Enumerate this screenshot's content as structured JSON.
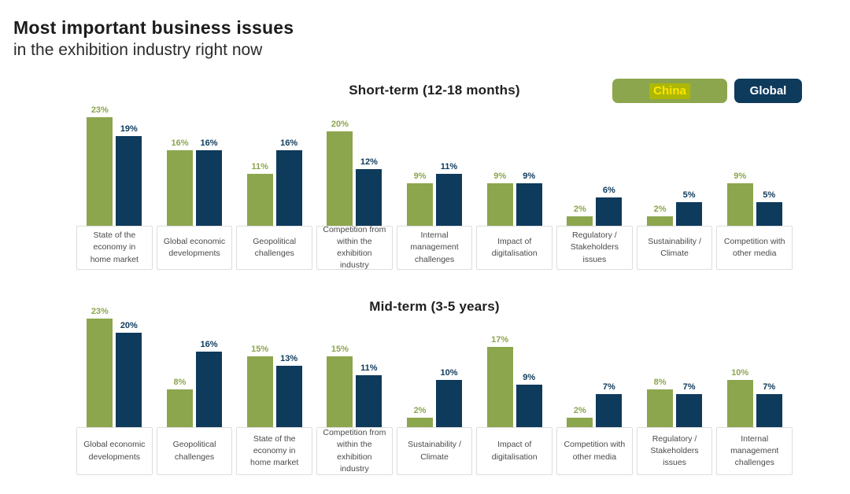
{
  "header": {
    "title_bold": "Most important business issues",
    "title_sub": "in the exhibition industry right now"
  },
  "legend": {
    "china_label": "China",
    "global_label": "Global"
  },
  "colors": {
    "china_green": "#8CA64E",
    "global_navy": "#0E3A5C",
    "china_label_text": "#FFE600",
    "china_label_highlight": "#ADB806",
    "label_box_border": "#DDDDDD",
    "label_text": "#4A4A4A"
  },
  "chart_data": [
    {
      "type": "bar",
      "title": "Short-term (12-18 months)",
      "unit": "%",
      "ylim": [
        0,
        24
      ],
      "grid": false,
      "legend_position": "top-right",
      "categories": [
        "State of the economy in home market",
        "Global economic developments",
        "Geopolitical challenges",
        "Competition from within the exhibition industry",
        "Internal management challenges",
        "Impact of digitalisation",
        "Regulatory / Stakeholders issues",
        "Sustainability / Climate",
        "Competition with other media"
      ],
      "series": [
        {
          "name": "China",
          "color_key": "china_green",
          "values": [
            23,
            16,
            11,
            20,
            9,
            9,
            2,
            2,
            9
          ]
        },
        {
          "name": "Global",
          "color_key": "global_navy",
          "values": [
            19,
            16,
            16,
            12,
            11,
            9,
            6,
            5,
            5
          ]
        }
      ]
    },
    {
      "type": "bar",
      "title": "Mid-term (3-5 years)",
      "unit": "%",
      "ylim": [
        0,
        24
      ],
      "grid": false,
      "legend_position": "top-right",
      "categories": [
        "Global economic developments",
        "Geopolitical challenges",
        "State of the economy in home market",
        "Competition from within the exhibition industry",
        "Sustainability / Climate",
        "Impact of digitalisation",
        "Competition with other media",
        "Regulatory / Stakeholders issues",
        "Internal management challenges"
      ],
      "series": [
        {
          "name": "China",
          "color_key": "china_green",
          "values": [
            23,
            8,
            15,
            15,
            2,
            17,
            2,
            8,
            10
          ]
        },
        {
          "name": "Global",
          "color_key": "global_navy",
          "values": [
            20,
            16,
            13,
            11,
            10,
            9,
            7,
            7,
            7
          ]
        }
      ]
    }
  ]
}
